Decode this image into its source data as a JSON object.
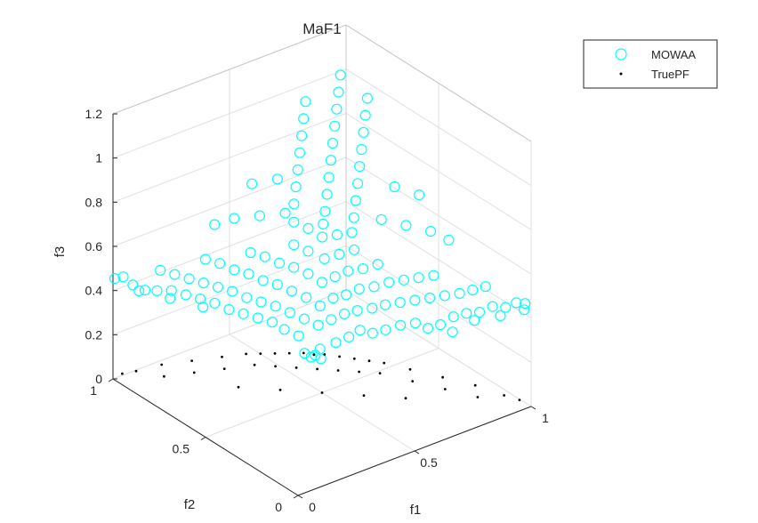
{
  "chart_data": {
    "type": "scatter",
    "projection": "3d",
    "title": "MaF1",
    "xlabel": "f1",
    "ylabel": "f2",
    "zlabel": "f3",
    "xlim": [
      0,
      1
    ],
    "ylim": [
      0,
      1
    ],
    "zlim": [
      0,
      1.2
    ],
    "xticks": [
      "0",
      "0.5",
      "1"
    ],
    "yticks": [
      "0",
      "0.5",
      "1"
    ],
    "zticks": [
      "0",
      "0.2",
      "0.4",
      "0.6",
      "0.8",
      "1",
      "1.2"
    ],
    "grid": true,
    "legend_position": "top-right",
    "series": [
      {
        "name": "MOWAA",
        "marker": "open-circle",
        "color": "#00ffff",
        "points": [
          [
            0.36,
            0.36,
            0.3
          ],
          [
            0.35,
            0.37,
            0.29
          ],
          [
            0.38,
            0.36,
            0.32
          ],
          [
            0.33,
            0.38,
            0.31
          ],
          [
            0.36,
            0.33,
            0.3
          ],
          [
            0.44,
            0.35,
            0.33
          ],
          [
            0.48,
            0.33,
            0.35
          ],
          [
            0.52,
            0.32,
            0.37
          ],
          [
            0.55,
            0.29,
            0.36
          ],
          [
            0.59,
            0.27,
            0.37
          ],
          [
            0.63,
            0.24,
            0.39
          ],
          [
            0.67,
            0.21,
            0.4
          ],
          [
            0.7,
            0.18,
            0.38
          ],
          [
            0.73,
            0.15,
            0.4
          ],
          [
            0.77,
            0.13,
            0.43
          ],
          [
            0.81,
            0.11,
            0.44
          ],
          [
            0.85,
            0.09,
            0.44
          ],
          [
            0.89,
            0.07,
            0.46
          ],
          [
            0.93,
            0.05,
            0.45
          ],
          [
            0.96,
            0.03,
            0.47
          ],
          [
            0.99,
            0.02,
            0.46
          ],
          [
            0.97,
            0.0,
            0.45
          ],
          [
            0.9,
            0.04,
            0.43
          ],
          [
            0.82,
            0.08,
            0.42
          ],
          [
            0.75,
            0.11,
            0.38
          ],
          [
            0.36,
            0.45,
            0.34
          ],
          [
            0.33,
            0.49,
            0.36
          ],
          [
            0.31,
            0.53,
            0.38
          ],
          [
            0.28,
            0.57,
            0.39
          ],
          [
            0.25,
            0.61,
            0.4
          ],
          [
            0.22,
            0.65,
            0.41
          ],
          [
            0.19,
            0.69,
            0.43
          ],
          [
            0.16,
            0.73,
            0.44
          ],
          [
            0.13,
            0.77,
            0.45
          ],
          [
            0.1,
            0.81,
            0.46
          ],
          [
            0.07,
            0.85,
            0.45
          ],
          [
            0.05,
            0.89,
            0.44
          ],
          [
            0.03,
            0.93,
            0.45
          ],
          [
            0.02,
            0.97,
            0.47
          ],
          [
            0.0,
            0.99,
            0.46
          ],
          [
            0.04,
            0.91,
            0.43
          ],
          [
            0.11,
            0.83,
            0.41
          ],
          [
            0.18,
            0.74,
            0.39
          ],
          [
            0.42,
            0.42,
            0.38
          ],
          [
            0.46,
            0.4,
            0.4
          ],
          [
            0.5,
            0.38,
            0.42
          ],
          [
            0.54,
            0.36,
            0.43
          ],
          [
            0.58,
            0.33,
            0.44
          ],
          [
            0.62,
            0.31,
            0.45
          ],
          [
            0.66,
            0.28,
            0.46
          ],
          [
            0.7,
            0.25,
            0.47
          ],
          [
            0.74,
            0.22,
            0.48
          ],
          [
            0.78,
            0.19,
            0.49
          ],
          [
            0.82,
            0.16,
            0.5
          ],
          [
            0.86,
            0.14,
            0.51
          ],
          [
            0.9,
            0.12,
            0.52
          ],
          [
            0.4,
            0.47,
            0.39
          ],
          [
            0.37,
            0.51,
            0.41
          ],
          [
            0.34,
            0.55,
            0.43
          ],
          [
            0.31,
            0.59,
            0.44
          ],
          [
            0.28,
            0.63,
            0.45
          ],
          [
            0.25,
            0.67,
            0.47
          ],
          [
            0.22,
            0.71,
            0.48
          ],
          [
            0.19,
            0.75,
            0.49
          ],
          [
            0.16,
            0.79,
            0.5
          ],
          [
            0.13,
            0.83,
            0.51
          ],
          [
            0.1,
            0.87,
            0.52
          ],
          [
            0.46,
            0.46,
            0.43
          ],
          [
            0.5,
            0.44,
            0.46
          ],
          [
            0.54,
            0.42,
            0.47
          ],
          [
            0.58,
            0.4,
            0.49
          ],
          [
            0.62,
            0.37,
            0.5
          ],
          [
            0.66,
            0.34,
            0.52
          ],
          [
            0.7,
            0.31,
            0.53
          ],
          [
            0.74,
            0.28,
            0.54
          ],
          [
            0.78,
            0.25,
            0.55
          ],
          [
            0.44,
            0.51,
            0.45
          ],
          [
            0.41,
            0.55,
            0.47
          ],
          [
            0.38,
            0.59,
            0.49
          ],
          [
            0.35,
            0.63,
            0.5
          ],
          [
            0.32,
            0.67,
            0.52
          ],
          [
            0.29,
            0.71,
            0.53
          ],
          [
            0.26,
            0.75,
            0.55
          ],
          [
            0.23,
            0.79,
            0.56
          ],
          [
            0.5,
            0.5,
            0.5
          ],
          [
            0.54,
            0.48,
            0.52
          ],
          [
            0.58,
            0.46,
            0.54
          ],
          [
            0.62,
            0.43,
            0.55
          ],
          [
            0.66,
            0.4,
            0.57
          ],
          [
            0.48,
            0.55,
            0.52
          ],
          [
            0.45,
            0.59,
            0.54
          ],
          [
            0.42,
            0.63,
            0.55
          ],
          [
            0.39,
            0.67,
            0.57
          ],
          [
            0.36,
            0.71,
            0.58
          ],
          [
            0.55,
            0.55,
            0.56
          ],
          [
            0.59,
            0.52,
            0.58
          ],
          [
            0.63,
            0.49,
            0.6
          ],
          [
            0.52,
            0.6,
            0.58
          ],
          [
            0.49,
            0.64,
            0.6
          ],
          [
            0.58,
            0.6,
            0.62
          ],
          [
            0.56,
            0.65,
            0.64
          ],
          [
            0.62,
            0.57,
            0.63
          ],
          [
            0.6,
            0.62,
            0.66
          ],
          [
            0.66,
            0.54,
            0.64
          ],
          [
            0.53,
            0.69,
            0.66
          ],
          [
            0.64,
            0.66,
            0.68
          ],
          [
            0.7,
            0.58,
            0.67
          ],
          [
            0.57,
            0.74,
            0.7
          ],
          [
            0.68,
            0.7,
            0.72
          ],
          [
            0.74,
            0.62,
            0.71
          ],
          [
            0.61,
            0.78,
            0.74
          ],
          [
            0.72,
            0.74,
            0.76
          ],
          [
            0.78,
            0.66,
            0.75
          ],
          [
            0.65,
            0.82,
            0.78
          ],
          [
            0.76,
            0.78,
            0.8
          ],
          [
            0.82,
            0.7,
            0.79
          ],
          [
            0.69,
            0.86,
            0.82
          ],
          [
            0.8,
            0.82,
            0.84
          ],
          [
            0.86,
            0.74,
            0.83
          ],
          [
            0.73,
            0.9,
            0.86
          ],
          [
            0.84,
            0.86,
            0.88
          ],
          [
            0.9,
            0.78,
            0.87
          ],
          [
            0.77,
            0.94,
            0.9
          ],
          [
            0.88,
            0.9,
            0.92
          ],
          [
            0.94,
            0.82,
            0.91
          ],
          [
            0.81,
            0.98,
            0.94
          ],
          [
            0.92,
            0.94,
            0.96
          ],
          [
            0.98,
            0.86,
            0.95
          ],
          [
            0.96,
            0.98,
            1.0
          ],
          [
            0.85,
            0.62,
            0.58
          ],
          [
            0.9,
            0.55,
            0.57
          ],
          [
            0.95,
            0.48,
            0.56
          ],
          [
            0.62,
            0.85,
            0.58
          ],
          [
            0.55,
            0.9,
            0.57
          ],
          [
            0.48,
            0.95,
            0.56
          ],
          [
            0.93,
            0.65,
            0.68
          ],
          [
            0.65,
            0.93,
            0.68
          ],
          [
            0.98,
            0.58,
            0.66
          ],
          [
            0.58,
            0.98,
            0.66
          ],
          [
            0.42,
            0.98,
            0.54
          ],
          [
            0.98,
            0.42,
            0.54
          ]
        ]
      },
      {
        "name": "TruePF",
        "marker": "dot",
        "color": "#000000",
        "points": [
          [
            0.33,
            0.33,
            0.33
          ],
          [
            0.36,
            0.31,
            0.33
          ],
          [
            0.4,
            0.28,
            0.32
          ],
          [
            0.44,
            0.25,
            0.31
          ],
          [
            0.48,
            0.22,
            0.3
          ],
          [
            0.31,
            0.36,
            0.33
          ],
          [
            0.28,
            0.4,
            0.32
          ],
          [
            0.25,
            0.44,
            0.31
          ],
          [
            0.22,
            0.48,
            0.3
          ],
          [
            0.52,
            0.19,
            0.29
          ],
          [
            0.19,
            0.52,
            0.29
          ],
          [
            0.4,
            0.4,
            0.2
          ],
          [
            0.5,
            0.5,
            0.0
          ],
          [
            0.6,
            0.4,
            0.0
          ],
          [
            0.7,
            0.3,
            0.0
          ],
          [
            0.4,
            0.6,
            0.0
          ],
          [
            0.3,
            0.7,
            0.0
          ],
          [
            0.45,
            0.35,
            0.2
          ],
          [
            0.55,
            0.25,
            0.2
          ],
          [
            0.35,
            0.45,
            0.2
          ],
          [
            0.25,
            0.55,
            0.2
          ],
          [
            0.6,
            0.15,
            0.25
          ],
          [
            0.15,
            0.6,
            0.25
          ],
          [
            0.7,
            0.1,
            0.2
          ],
          [
            0.1,
            0.7,
            0.2
          ],
          [
            0.8,
            0.05,
            0.15
          ],
          [
            0.05,
            0.8,
            0.15
          ],
          [
            0.9,
            0.02,
            0.08
          ],
          [
            0.02,
            0.9,
            0.08
          ],
          [
            0.95,
            0.0,
            0.05
          ],
          [
            0.0,
            0.95,
            0.05
          ],
          [
            0.5,
            0.3,
            0.2
          ],
          [
            0.3,
            0.5,
            0.2
          ],
          [
            0.65,
            0.2,
            0.15
          ],
          [
            0.2,
            0.65,
            0.15
          ],
          [
            0.75,
            0.15,
            0.1
          ],
          [
            0.15,
            0.75,
            0.1
          ],
          [
            0.85,
            0.1,
            0.05
          ],
          [
            0.1,
            0.85,
            0.05
          ]
        ]
      }
    ]
  }
}
